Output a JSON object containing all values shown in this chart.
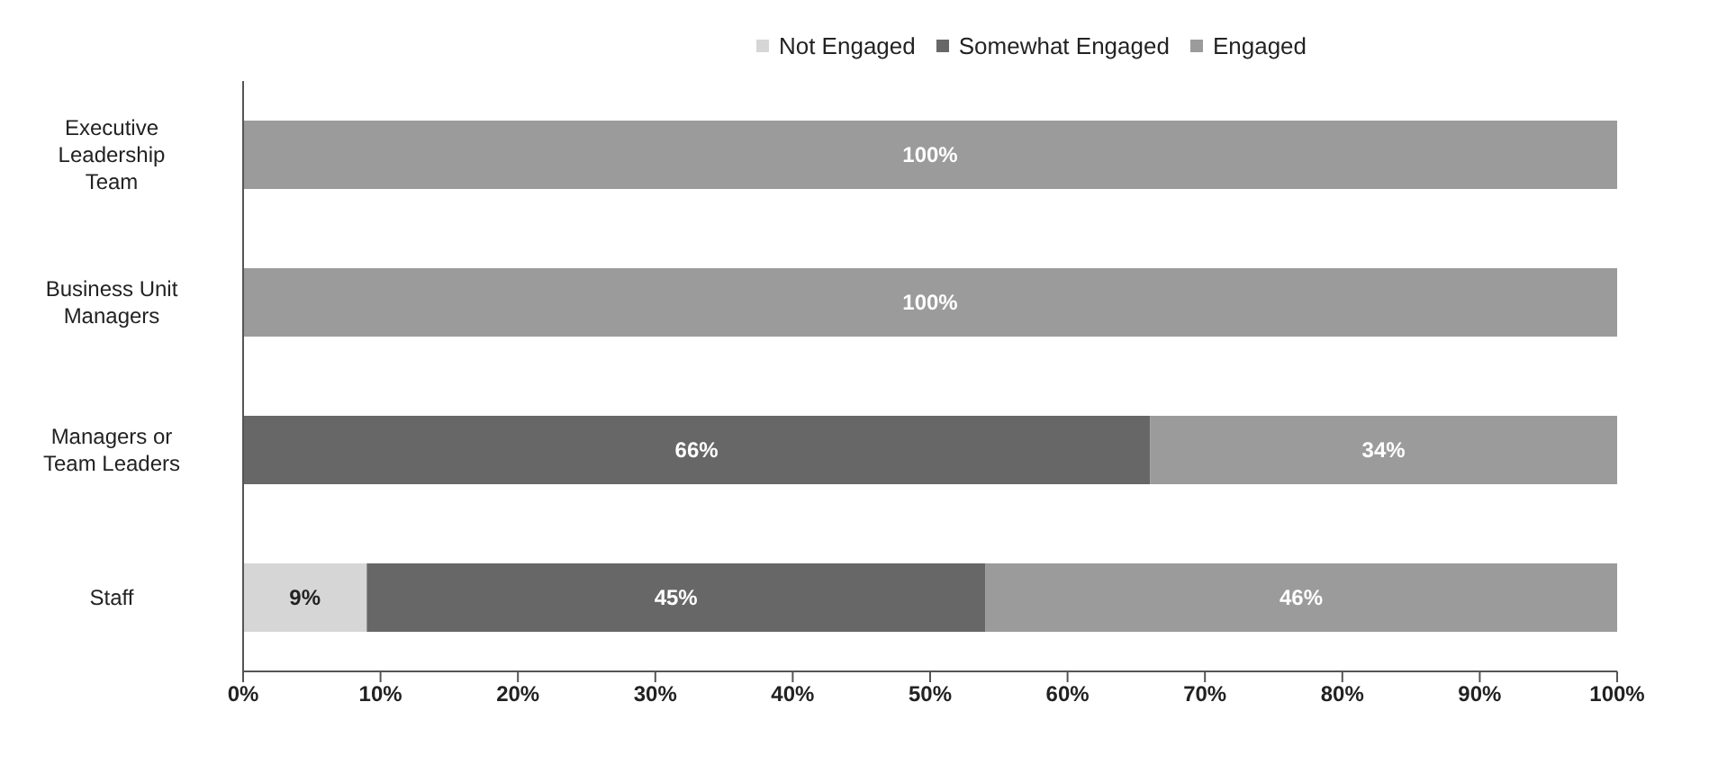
{
  "chart_data": {
    "type": "bar",
    "orientation": "horizontal",
    "stacked": true,
    "categories": [
      "Executive Leadership Team",
      "Business Unit Managers",
      "Managers or Team Leaders",
      "Staff"
    ],
    "series": [
      {
        "name": "Not Engaged",
        "color": "#d6d6d6",
        "values": [
          0,
          0,
          0,
          9
        ],
        "value_labels": [
          null,
          null,
          null,
          "9%"
        ]
      },
      {
        "name": "Somewhat Engaged",
        "color": "#676767",
        "values": [
          0,
          0,
          66,
          45
        ],
        "value_labels": [
          null,
          null,
          "66%",
          "45%"
        ]
      },
      {
        "name": "Engaged",
        "color": "#9b9b9b",
        "values": [
          100,
          100,
          34,
          46
        ],
        "value_labels": [
          "100%",
          "100%",
          "34%",
          "46%"
        ]
      }
    ],
    "xlim": [
      0,
      100
    ],
    "xticks": [
      {
        "value": 0,
        "label": "0%"
      },
      {
        "value": 10,
        "label": "10%"
      },
      {
        "value": 20,
        "label": "20%"
      },
      {
        "value": 30,
        "label": "30%"
      },
      {
        "value": 40,
        "label": "40%"
      },
      {
        "value": 50,
        "label": "50%"
      },
      {
        "value": 60,
        "label": "60%"
      },
      {
        "value": 70,
        "label": "70%"
      },
      {
        "value": 80,
        "label": "80%"
      },
      {
        "value": 90,
        "label": "90%"
      },
      {
        "value": 100,
        "label": "100%"
      }
    ],
    "grid": false,
    "legend": "top"
  }
}
